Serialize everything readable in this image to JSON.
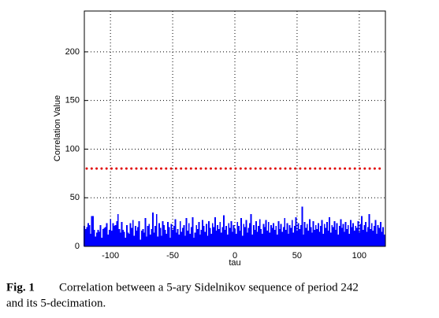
{
  "chart_data": {
    "type": "bar",
    "xlabel": "tau",
    "ylabel": "Correlation Value",
    "xlim": [
      -121,
      121
    ],
    "ylim": [
      0,
      242
    ],
    "xticks": [
      -100,
      -50,
      0,
      50,
      100
    ],
    "yticks": [
      0,
      50,
      100,
      150,
      200
    ],
    "grid": true,
    "color": "#0000ff",
    "reference_line": {
      "value": 80,
      "color": "#e00000"
    },
    "x": [
      -121,
      -120,
      -119,
      -118,
      -117,
      -116,
      -115,
      -114,
      -113,
      -112,
      -111,
      -110,
      -109,
      -108,
      -107,
      -106,
      -105,
      -104,
      -103,
      -102,
      -101,
      -100,
      -99,
      -98,
      -97,
      -96,
      -95,
      -94,
      -93,
      -92,
      -91,
      -90,
      -89,
      -88,
      -87,
      -86,
      -85,
      -84,
      -83,
      -82,
      -81,
      -80,
      -79,
      -78,
      -77,
      -76,
      -75,
      -74,
      -73,
      -72,
      -71,
      -70,
      -69,
      -68,
      -67,
      -66,
      -65,
      -64,
      -63,
      -62,
      -61,
      -60,
      -59,
      -58,
      -57,
      -56,
      -55,
      -54,
      -53,
      -52,
      -51,
      -50,
      -49,
      -48,
      -47,
      -46,
      -45,
      -44,
      -43,
      -42,
      -41,
      -40,
      -39,
      -38,
      -37,
      -36,
      -35,
      -34,
      -33,
      -32,
      -31,
      -30,
      -29,
      -28,
      -27,
      -26,
      -25,
      -24,
      -23,
      -22,
      -21,
      -20,
      -19,
      -18,
      -17,
      -16,
      -15,
      -14,
      -13,
      -12,
      -11,
      -10,
      -9,
      -8,
      -7,
      -6,
      -5,
      -4,
      -3,
      -2,
      -1,
      0,
      1,
      2,
      3,
      4,
      5,
      6,
      7,
      8,
      9,
      10,
      11,
      12,
      13,
      14,
      15,
      16,
      17,
      18,
      19,
      20,
      21,
      22,
      23,
      24,
      25,
      26,
      27,
      28,
      29,
      30,
      31,
      32,
      33,
      34,
      35,
      36,
      37,
      38,
      39,
      40,
      41,
      42,
      43,
      44,
      45,
      46,
      47,
      48,
      49,
      50,
      51,
      52,
      53,
      54,
      55,
      56,
      57,
      58,
      59,
      60,
      61,
      62,
      63,
      64,
      65,
      66,
      67,
      68,
      69,
      70,
      71,
      72,
      73,
      74,
      75,
      76,
      77,
      78,
      79,
      80,
      81,
      82,
      83,
      84,
      85,
      86,
      87,
      88,
      89,
      90,
      91,
      92,
      93,
      94,
      95,
      96,
      97,
      98,
      99,
      100,
      101,
      102,
      103,
      104,
      105,
      106,
      107,
      108,
      109,
      110,
      111,
      112,
      113,
      114,
      115,
      116,
      117,
      118,
      119,
      120
    ],
    "values": [
      21,
      18,
      20,
      24,
      22,
      13,
      31,
      31,
      17,
      10,
      14,
      17,
      15,
      22,
      9,
      18,
      19,
      20,
      24,
      12,
      17,
      28,
      16,
      24,
      21,
      22,
      26,
      33,
      18,
      14,
      25,
      17,
      15,
      9,
      22,
      14,
      13,
      24,
      19,
      27,
      11,
      21,
      16,
      20,
      26,
      7,
      16,
      18,
      14,
      29,
      10,
      21,
      23,
      12,
      18,
      35,
      14,
      21,
      33,
      10,
      24,
      19,
      11,
      26,
      22,
      17,
      13,
      25,
      20,
      9,
      23,
      17,
      21,
      28,
      14,
      18,
      12,
      26,
      15,
      19,
      22,
      11,
      29,
      16,
      24,
      13,
      20,
      30,
      9,
      14,
      22,
      18,
      25,
      12,
      17,
      27,
      21,
      15,
      23,
      11,
      26,
      19,
      13,
      24,
      20,
      30,
      16,
      22,
      18,
      25,
      14,
      20,
      32,
      17,
      21,
      12,
      24,
      19,
      26,
      15,
      22,
      18,
      13,
      25,
      21,
      16,
      29,
      11,
      23,
      20,
      27,
      14,
      19,
      24,
      33,
      12,
      22,
      17,
      26,
      15,
      21,
      28,
      18,
      13,
      23,
      20,
      27,
      16,
      25,
      14,
      22,
      19,
      24,
      17,
      21,
      12,
      26,
      18,
      23,
      15,
      20,
      29,
      17,
      24,
      13,
      22,
      19,
      27,
      14,
      21,
      30,
      16,
      24,
      18,
      22,
      41,
      12,
      25,
      19,
      23,
      16,
      28,
      20,
      14,
      26,
      17,
      22,
      18,
      24,
      15,
      21,
      27,
      13,
      23,
      19,
      25,
      16,
      30,
      14,
      22,
      20,
      26,
      17,
      24,
      12,
      21,
      28,
      19,
      23,
      15,
      25,
      18,
      22,
      13,
      27,
      20,
      24,
      16,
      21,
      19,
      26,
      14,
      23,
      31,
      17,
      22,
      25,
      15,
      20,
      33,
      18,
      24,
      16,
      21,
      27,
      13,
      22,
      19,
      25,
      15,
      20,
      12
    ]
  },
  "caption": {
    "label": "Fig. 1",
    "text": "Correlation between a 5-ary Sidelnikov sequence of period 242",
    "text2": "and its 5-decimation."
  }
}
